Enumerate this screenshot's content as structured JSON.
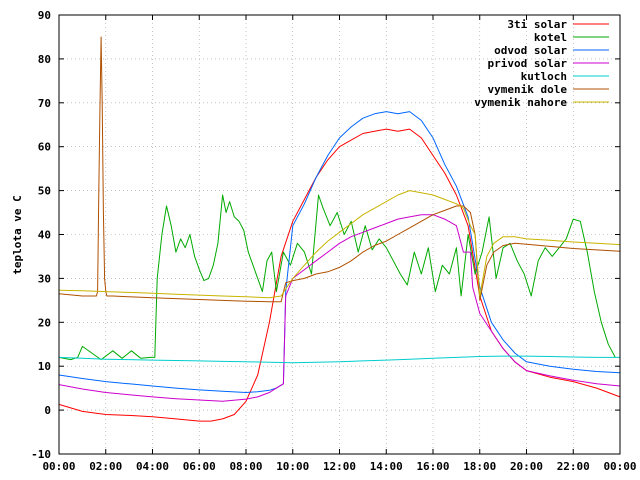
{
  "chart_data": {
    "type": "line",
    "title": "",
    "xlabel": "",
    "ylabel": "teplota ve C",
    "xlim": [
      0,
      24
    ],
    "ylim": [
      -10,
      90
    ],
    "grid": true,
    "legend_position": "top-right",
    "x_ticks": [
      {
        "value": 0,
        "label": "00:00"
      },
      {
        "value": 2,
        "label": "02:00"
      },
      {
        "value": 4,
        "label": "04:00"
      },
      {
        "value": 6,
        "label": "06:00"
      },
      {
        "value": 8,
        "label": "08:00"
      },
      {
        "value": 10,
        "label": "10:00"
      },
      {
        "value": 12,
        "label": "12:00"
      },
      {
        "value": 14,
        "label": "14:00"
      },
      {
        "value": 16,
        "label": "16:00"
      },
      {
        "value": 18,
        "label": "18:00"
      },
      {
        "value": 20,
        "label": "20:00"
      },
      {
        "value": 22,
        "label": "22:00"
      },
      {
        "value": 24,
        "label": "00:00"
      }
    ],
    "y_ticks": [
      {
        "value": -10,
        "label": "-10"
      },
      {
        "value": 0,
        "label": "0"
      },
      {
        "value": 10,
        "label": "10"
      },
      {
        "value": 20,
        "label": "20"
      },
      {
        "value": 30,
        "label": "30"
      },
      {
        "value": 40,
        "label": "40"
      },
      {
        "value": 50,
        "label": "50"
      },
      {
        "value": 60,
        "label": "60"
      },
      {
        "value": 70,
        "label": "70"
      },
      {
        "value": 80,
        "label": "80"
      },
      {
        "value": 90,
        "label": "90"
      }
    ],
    "series": [
      {
        "name": "3ti solar",
        "color": "#ff0000",
        "x": [
          0,
          1,
          2,
          3,
          4,
          5,
          6,
          6.5,
          7,
          7.5,
          8,
          8.5,
          9,
          9.5,
          10,
          10.5,
          11,
          11.5,
          12,
          12.5,
          13,
          13.5,
          14,
          14.5,
          15,
          15.5,
          16,
          16.5,
          17,
          17.5,
          18,
          18.5,
          19,
          19.5,
          20,
          21,
          22,
          23,
          23.5,
          24
        ],
        "y": [
          1.3,
          -0.3,
          -1,
          -1.2,
          -1.5,
          -2,
          -2.5,
          -2.5,
          -2,
          -1,
          2,
          8,
          20,
          35,
          43,
          48,
          53,
          57,
          60,
          61.5,
          63,
          63.5,
          64,
          63.5,
          64,
          62,
          58,
          54,
          49,
          42,
          26,
          18,
          14,
          11,
          9,
          7.5,
          6.5,
          5,
          4,
          3
        ]
      },
      {
        "name": "kotel",
        "color": "#00aa00",
        "x": [
          0,
          0.5,
          0.8,
          1,
          1.4,
          1.8,
          2.3,
          2.7,
          3.1,
          3.5,
          3.9,
          4.1,
          4.2,
          4.4,
          4.6,
          4.8,
          5,
          5.2,
          5.4,
          5.6,
          5.8,
          6,
          6.2,
          6.4,
          6.6,
          6.8,
          7,
          7.15,
          7.3,
          7.5,
          7.7,
          7.9,
          8.1,
          8.3,
          8.5,
          8.7,
          8.9,
          9.1,
          9.3,
          9.6,
          9.9,
          10.2,
          10.5,
          10.8,
          11.1,
          11.3,
          11.6,
          11.9,
          12.2,
          12.5,
          12.8,
          13.1,
          13.4,
          13.7,
          14.0,
          14.3,
          14.6,
          14.9,
          15.2,
          15.5,
          15.8,
          16.1,
          16.4,
          16.7,
          17.0,
          17.2,
          17.5,
          17.8,
          18.1,
          18.4,
          18.7,
          19,
          19.3,
          19.6,
          19.9,
          20.2,
          20.5,
          20.8,
          21.1,
          21.4,
          21.7,
          22,
          22.3,
          22.6,
          22.9,
          23.2,
          23.5,
          23.8
        ],
        "y": [
          12,
          11.5,
          12,
          14.5,
          13,
          11.5,
          13.5,
          11.8,
          13.5,
          11.8,
          12,
          12,
          30,
          40,
          46.5,
          42,
          36,
          39,
          37,
          40,
          35,
          32,
          29.5,
          30,
          33,
          38,
          49,
          45,
          47.5,
          44,
          43,
          41,
          36,
          33,
          30,
          27,
          34,
          36,
          27,
          36,
          33,
          38,
          36,
          31,
          49,
          46,
          42,
          45,
          40,
          43,
          36,
          42,
          36.5,
          39,
          37,
          34,
          31,
          28.5,
          36,
          31,
          37,
          27,
          33,
          31,
          37,
          26,
          40,
          31,
          36,
          44,
          30,
          37,
          38,
          34,
          31,
          26,
          34,
          37,
          35,
          37,
          39,
          43.5,
          43,
          36,
          27,
          20,
          15,
          12
        ]
      },
      {
        "name": "odvod solar",
        "color": "#0066ff",
        "x": [
          0,
          1,
          2,
          3,
          4,
          5,
          6,
          7,
          8,
          8.5,
          9,
          9.3,
          9.6,
          9.7,
          10,
          10.5,
          11,
          11.5,
          12,
          12.5,
          13,
          13.5,
          14,
          14.5,
          15,
          15.5,
          16,
          16.5,
          17,
          17.5,
          18,
          18.5,
          19,
          19.5,
          20,
          21,
          22,
          23,
          24
        ],
        "y": [
          8,
          7.2,
          6.5,
          6,
          5.5,
          5,
          4.6,
          4.3,
          4,
          4.2,
          4.5,
          5,
          6,
          27,
          42,
          47,
          53,
          58,
          62,
          64.5,
          66.5,
          67.5,
          68,
          67.5,
          68,
          66,
          62,
          56,
          51,
          44,
          28,
          20,
          16,
          13,
          11,
          10,
          9.3,
          8.8,
          8.5
        ]
      },
      {
        "name": "privod solar",
        "color": "#cc00cc",
        "x": [
          0,
          1,
          2,
          3,
          4,
          5,
          6,
          7,
          8,
          8.5,
          9,
          9.3,
          9.6,
          9.7,
          10,
          10.5,
          11,
          11.5,
          12,
          12.5,
          13,
          13.5,
          14,
          14.5,
          15,
          15.5,
          16,
          16.5,
          17,
          17.3,
          17.6,
          17.7,
          18,
          18.5,
          19,
          19.5,
          20,
          21,
          22,
          23,
          24
        ],
        "y": [
          5.8,
          4.8,
          4,
          3.5,
          3,
          2.6,
          2.3,
          2,
          2.5,
          3,
          4,
          5,
          6,
          26,
          30,
          32,
          34,
          36,
          38,
          39.5,
          40.5,
          41.5,
          42.5,
          43.5,
          44,
          44.5,
          44.5,
          43.5,
          42,
          36,
          36,
          28,
          22,
          18,
          14,
          11,
          9,
          7.8,
          6.8,
          6,
          5.5
        ]
      },
      {
        "name": "kutloch",
        "color": "#00cccc",
        "x": [
          0,
          1,
          2,
          3,
          4,
          5,
          6,
          7,
          8,
          9,
          10,
          11,
          12,
          13,
          14,
          15,
          16,
          17,
          18,
          19,
          20,
          21,
          22,
          23,
          24
        ],
        "y": [
          12,
          11.8,
          11.6,
          11.5,
          11.4,
          11.3,
          11.2,
          11.1,
          11.0,
          10.9,
          10.8,
          10.9,
          11.0,
          11.2,
          11.4,
          11.6,
          11.8,
          12.0,
          12.2,
          12.3,
          12.3,
          12.2,
          12.1,
          12.0,
          12.0
        ]
      },
      {
        "name": "vymenik dole",
        "color": "#b05000",
        "x": [
          0,
          1,
          1.5,
          1.6,
          1.65,
          1.7,
          1.75,
          1.8,
          1.85,
          1.9,
          1.95,
          2.0,
          2.05,
          2.1,
          2.15,
          2.3,
          3,
          4,
          5,
          6,
          7,
          8,
          9,
          9.5,
          9.7,
          10,
          10.5,
          11,
          11.5,
          12,
          12.5,
          13,
          13.5,
          14,
          14.5,
          15,
          15.5,
          16,
          16.5,
          17,
          17.3,
          17.6,
          17.8,
          18,
          18.3,
          18.6,
          19,
          19.5,
          20,
          21,
          22,
          23,
          24
        ],
        "y": [
          26.5,
          26,
          26,
          26,
          27,
          48,
          68,
          85,
          70,
          45,
          30,
          27,
          26,
          26,
          26,
          26,
          25.8,
          25.6,
          25.4,
          25.2,
          25.0,
          24.8,
          24.7,
          24.7,
          29,
          29.5,
          30,
          31,
          31.5,
          32.5,
          34,
          36,
          37.5,
          38.5,
          40,
          41.5,
          43,
          44.5,
          45.5,
          46.5,
          46.5,
          45,
          40,
          25,
          33,
          36,
          37.5,
          38,
          37.8,
          37.3,
          36.8,
          36.5,
          36.2
        ]
      },
      {
        "name": "vymenik nahore",
        "color": "#c8b400",
        "x": [
          0,
          1,
          2,
          3,
          4,
          5,
          6,
          7,
          8,
          9,
          9.5,
          10,
          10.5,
          11,
          11.5,
          12,
          12.5,
          13,
          13.5,
          14,
          14.5,
          15,
          15.5,
          16,
          16.5,
          17,
          17.3,
          17.6,
          17.8,
          18,
          18.3,
          18.6,
          19,
          19.5,
          20,
          21,
          22,
          23,
          24
        ],
        "y": [
          27.3,
          27.2,
          27,
          26.8,
          26.6,
          26.4,
          26.2,
          26,
          25.8,
          25.6,
          26,
          30,
          33,
          36,
          38.5,
          40.5,
          42.5,
          44.5,
          46,
          47.5,
          49,
          50,
          49.5,
          49,
          48,
          47,
          46,
          42,
          40,
          26,
          35,
          38,
          39.5,
          39.5,
          39,
          38.7,
          38.3,
          38,
          37.7
        ]
      }
    ]
  }
}
